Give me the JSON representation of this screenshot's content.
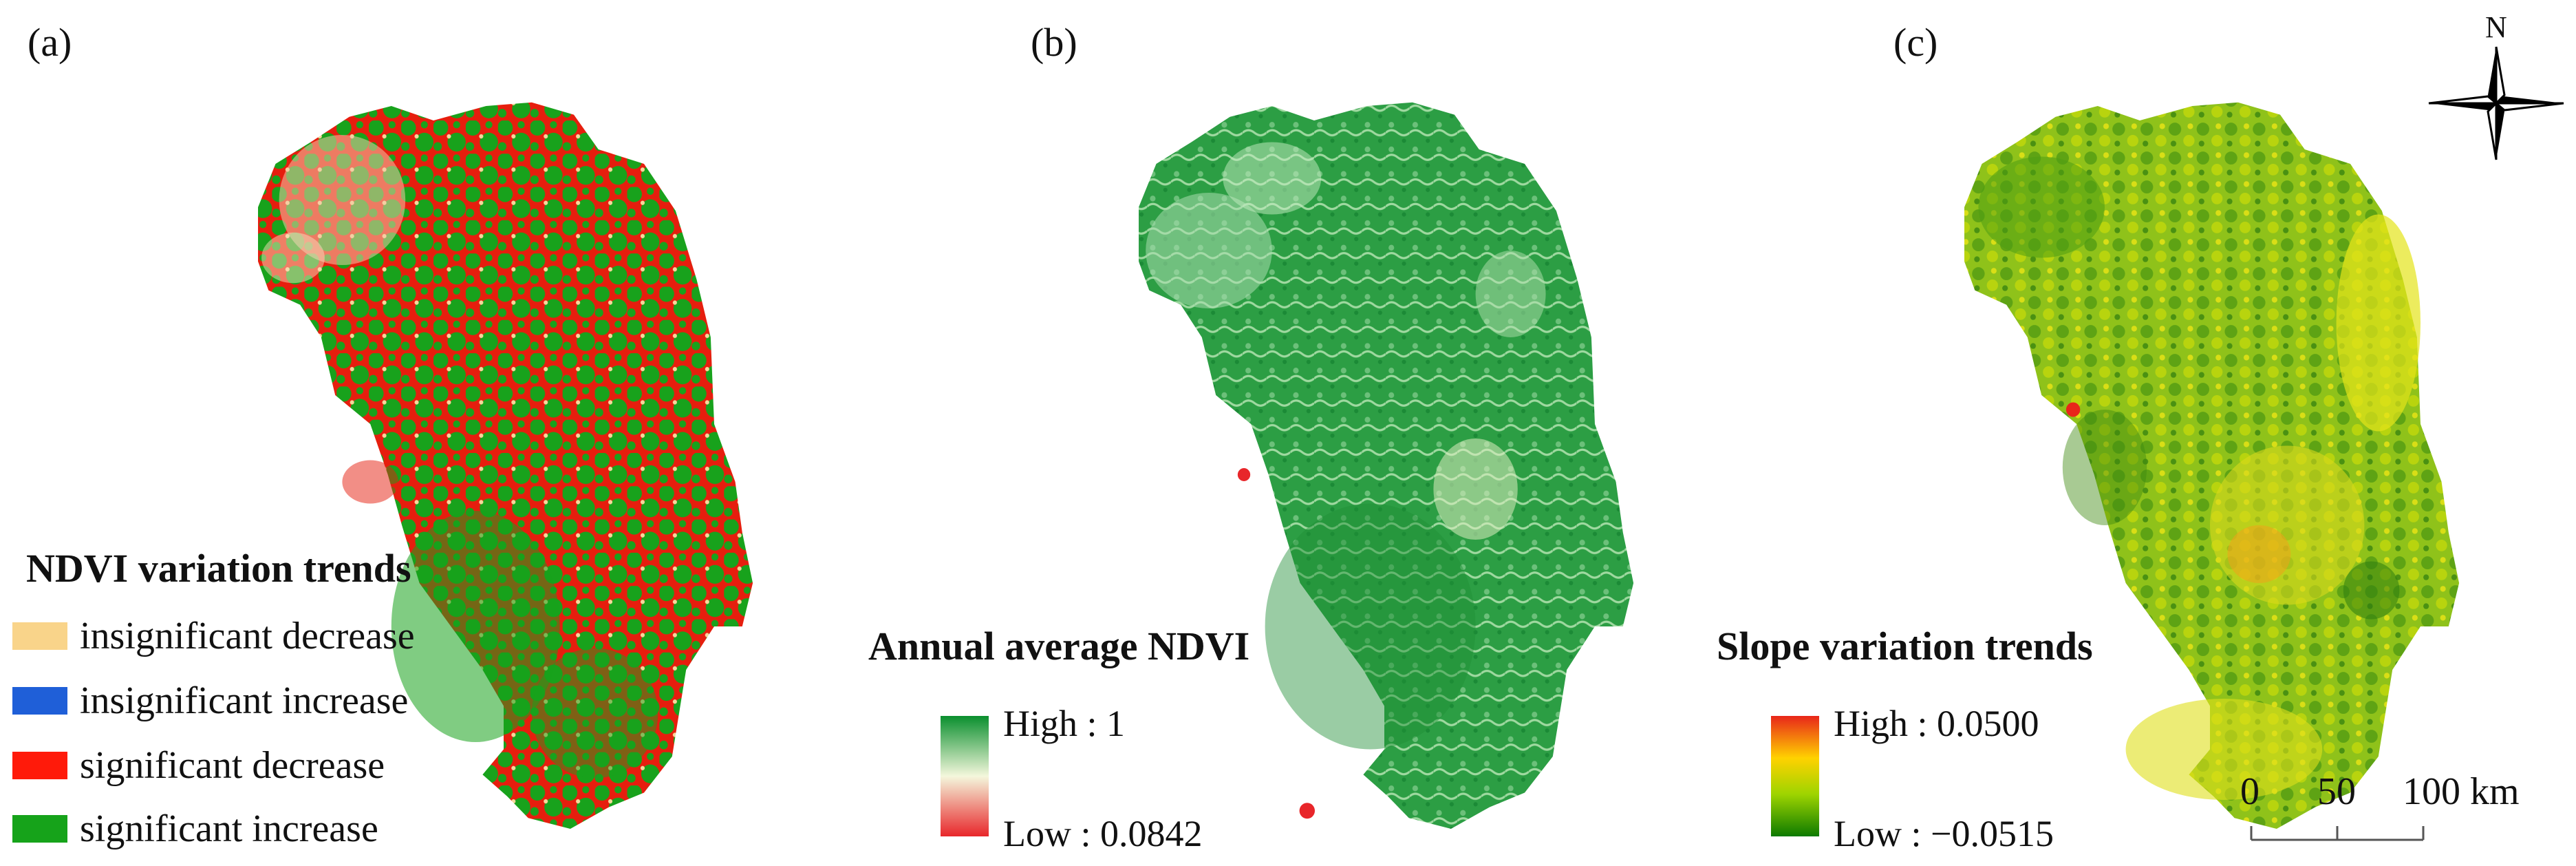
{
  "panels": [
    {
      "label": "(a)"
    },
    {
      "label": "(b)"
    },
    {
      "label": "(c)"
    }
  ],
  "legend_a": {
    "title": "NDVI variation trends",
    "items": [
      {
        "label": "insignificant decrease",
        "color": "#f9d48a"
      },
      {
        "label": "insignificant increase",
        "color": "#1f5fd8"
      },
      {
        "label": "significant decrease",
        "color": "#ff1a0a"
      },
      {
        "label": "significant increase",
        "color": "#16a31a"
      }
    ]
  },
  "legend_b": {
    "title": "Annual average NDVI",
    "high": "High : 1",
    "low": "Low : 0.0842",
    "ramp": [
      "#0a8f2e",
      "#f4f7dc",
      "#e8262a"
    ]
  },
  "legend_c": {
    "title": "Slope variation trends",
    "high": "High : 0.0500",
    "low": "Low : −0.0515",
    "ramp": [
      "#e8261a",
      "#ffd200",
      "#9ed400",
      "#0d7a00"
    ]
  },
  "north_arrow": {
    "label": "N"
  },
  "scale_bar": {
    "ticks": [
      "0",
      "50",
      "100 km"
    ]
  }
}
